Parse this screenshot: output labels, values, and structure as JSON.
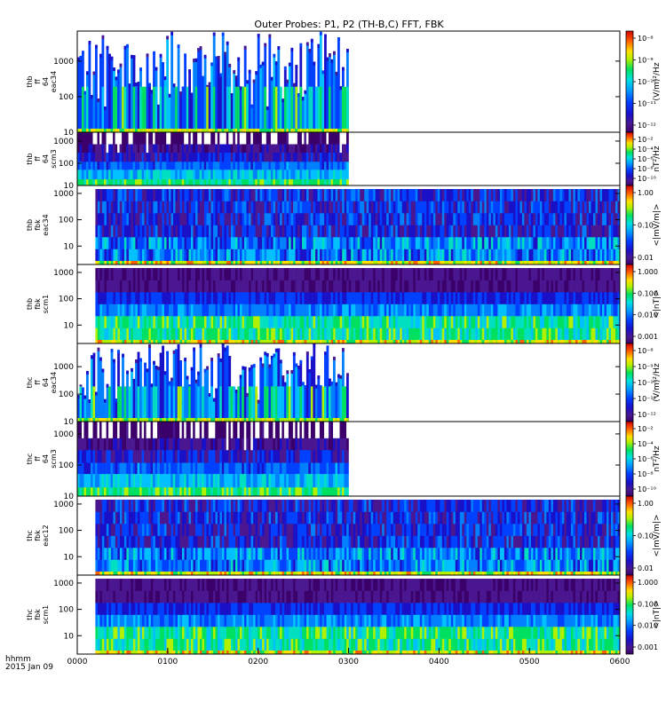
{
  "chart_data": {
    "type": "heatmap",
    "title": "Outer Probes: P1, P2 (TH-B,C) FFT, FBK",
    "time_axis": {
      "label_line1": "hhmm",
      "label_line2": "2015 Jan 09",
      "ticks": [
        "0000",
        "0100",
        "0200",
        "0300",
        "0400",
        "0500",
        "0600"
      ],
      "range_hours": [
        0,
        6
      ]
    },
    "panels": [
      {
        "id": "thb-ff-eac34",
        "ylabel": [
          "thb",
          "ff",
          "64",
          "eac34"
        ],
        "yticks": [
          "10",
          "100",
          "1000"
        ],
        "yrange": [
          10,
          7000
        ],
        "data_end_hour": 3.0,
        "data_start_hour": 0.0,
        "colorbar": {
          "label": "(V/m)²/Hz",
          "ticks": [
            "10⁻⁸",
            "10⁻¹⁰",
            "10⁻¹²"
          ],
          "display": [
            "10⁻⁸",
            "10⁻⁹",
            "10⁻¹⁰",
            "10⁻¹¹",
            "10⁻¹²"
          ]
        },
        "style": "eac-ff"
      },
      {
        "id": "thb-ff-scm3",
        "ylabel": [
          "thb",
          "ff",
          "64",
          "scm3"
        ],
        "yticks": [
          "10",
          "100",
          "1000"
        ],
        "yrange": [
          10,
          2500
        ],
        "data_end_hour": 3.0,
        "data_start_hour": 0.0,
        "colorbar": {
          "label": "nT²/Hz",
          "ticks": [
            "10⁻²",
            "10⁻⁴",
            "10⁻⁶",
            "10⁻⁸",
            "10⁻¹⁰"
          ]
        },
        "style": "scm-ff"
      },
      {
        "id": "thb-fbk-eac34",
        "ylabel": [
          "thb",
          "fbk",
          "eac34"
        ],
        "yticks": [
          "10",
          "100",
          "1000"
        ],
        "yrange": [
          2,
          2000
        ],
        "data_end_hour": 6.0,
        "data_start_hour": 0.2,
        "colorbar": {
          "label": "<|mV/m|>",
          "ticks": [
            "1.00",
            "0.10",
            "0.01"
          ]
        },
        "style": "fbk-e"
      },
      {
        "id": "thb-fbk-scm1",
        "ylabel": [
          "thb",
          "fbk",
          "scm1"
        ],
        "yticks": [
          "10",
          "100",
          "1000"
        ],
        "yrange": [
          2,
          2000
        ],
        "data_end_hour": 6.0,
        "data_start_hour": 0.2,
        "colorbar": {
          "label": "<|nT|>",
          "ticks": [
            "1.000",
            "0.100",
            "0.010",
            "0.001"
          ]
        },
        "style": "fbk-b"
      },
      {
        "id": "thc-ff-eac34",
        "ylabel": [
          "thc",
          "ff",
          "64",
          "eac34"
        ],
        "yticks": [
          "10",
          "100",
          "1000"
        ],
        "yrange": [
          10,
          7000
        ],
        "data_end_hour": 3.0,
        "data_start_hour": 0.0,
        "colorbar": {
          "label": "(V/m)²/Hz",
          "ticks": [
            "10⁻⁸",
            "10⁻¹⁰",
            "10⁻¹²"
          ],
          "display": [
            "10⁻⁸",
            "10⁻⁹",
            "10⁻¹⁰",
            "10⁻¹¹",
            "10⁻¹²"
          ]
        },
        "style": "eac-ff"
      },
      {
        "id": "thc-ff-scm3",
        "ylabel": [
          "thc",
          "ff",
          "64",
          "scm3"
        ],
        "yticks": [
          "10",
          "100",
          "1000"
        ],
        "yrange": [
          10,
          2500
        ],
        "data_end_hour": 3.0,
        "data_start_hour": 0.0,
        "colorbar": {
          "label": "nT²/Hz",
          "ticks": [
            "10⁻²",
            "10⁻⁴",
            "10⁻⁶",
            "10⁻⁸",
            "10⁻¹⁰"
          ]
        },
        "style": "scm-ff"
      },
      {
        "id": "thc-fbk-eac12",
        "ylabel": [
          "thc",
          "fbk",
          "eac12"
        ],
        "yticks": [
          "10",
          "100",
          "1000"
        ],
        "yrange": [
          2,
          2000
        ],
        "data_end_hour": 6.0,
        "data_start_hour": 0.2,
        "colorbar": {
          "label": "<|mV/m|>",
          "ticks": [
            "1.00",
            "0.10",
            "0.01"
          ]
        },
        "style": "fbk-e"
      },
      {
        "id": "thc-fbk-scm1",
        "ylabel": [
          "thc",
          "fbk",
          "scm1"
        ],
        "yticks": [
          "10",
          "100",
          "1000"
        ],
        "yrange": [
          2,
          2000
        ],
        "data_end_hour": 6.0,
        "data_start_hour": 0.2,
        "colorbar": {
          "label": "<|nT|>",
          "ticks": [
            "1.000",
            "0.100",
            "0.010",
            "0.001"
          ]
        },
        "style": "fbk-b"
      }
    ]
  }
}
